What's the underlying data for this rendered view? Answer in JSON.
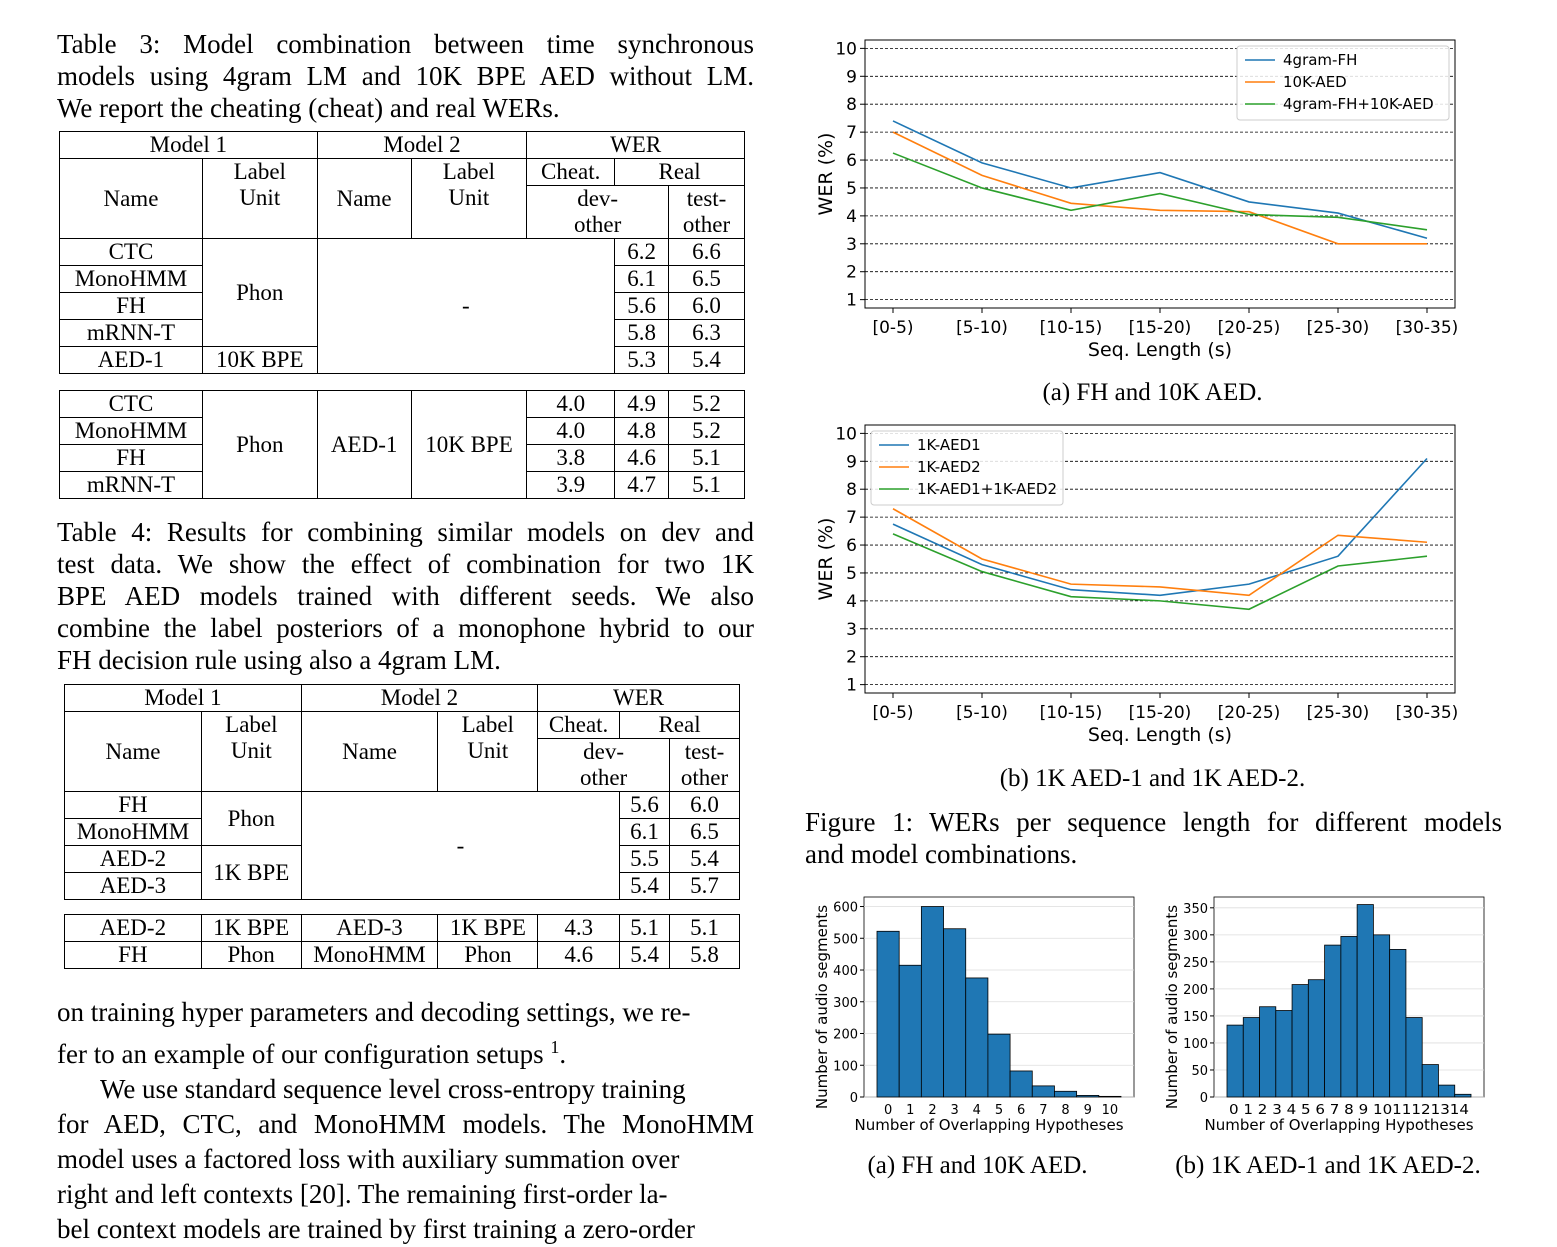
{
  "table3": {
    "caption_lines": [
      "Table 3:  Model combination between time synchronous",
      "models using 4gram LM and 10K BPE AED without LM.",
      "We report the cheating (cheat) and real WERs."
    ],
    "headers": {
      "model1": "Model 1",
      "model2": "Model 2",
      "wer": "WER",
      "name": "Name",
      "label": "Label",
      "unit": "Unit",
      "cheat": "Cheat.",
      "real": "Real",
      "dev": "dev-",
      "other": "other",
      "test": "test-",
      "dash": "-"
    },
    "single": [
      {
        "name": "CTC",
        "dev": "6.2",
        "test": "6.6"
      },
      {
        "name": "MonoHMM",
        "dev": "6.1",
        "test": "6.5"
      },
      {
        "name": "FH",
        "dev": "5.6",
        "test": "6.0"
      },
      {
        "name": "mRNN-T",
        "dev": "5.8",
        "test": "6.3"
      },
      {
        "name": "AED-1",
        "dev": "5.3",
        "test": "5.4"
      }
    ],
    "single_units": {
      "phon": "Phon",
      "bpe": "10K BPE"
    },
    "combo": {
      "unit1": "Phon",
      "model2": "AED-1",
      "unit2": "10K BPE",
      "rows": [
        {
          "name": "CTC",
          "cheat": "4.0",
          "dev": "4.9",
          "test": "5.2"
        },
        {
          "name": "MonoHMM",
          "cheat": "4.0",
          "dev": "4.8",
          "test": "5.2"
        },
        {
          "name": "FH",
          "cheat": "3.8",
          "dev": "4.6",
          "test": "5.1"
        },
        {
          "name": "mRNN-T",
          "cheat": "3.9",
          "dev": "4.7",
          "test": "5.1"
        }
      ]
    }
  },
  "table4": {
    "caption_lines": [
      "Table 4: Results for combining similar models on dev and",
      "test data.  We show the effect of combination for two 1K",
      "BPE AED models trained with different seeds. We also",
      "combine the label posteriors of a monophone hybrid to our",
      "FH decision rule using also a 4gram LM."
    ],
    "single": [
      {
        "name": "FH",
        "dev": "5.6",
        "test": "6.0"
      },
      {
        "name": "MonoHMM",
        "dev": "6.1",
        "test": "6.5"
      },
      {
        "name": "AED-2",
        "dev": "5.5",
        "test": "5.4"
      },
      {
        "name": "AED-3",
        "dev": "5.4",
        "test": "5.7"
      }
    ],
    "single_units": {
      "phon": "Phon",
      "bpe": "1K BPE"
    },
    "combo": [
      {
        "m1": "AED-2",
        "u1": "1K BPE",
        "m2": "AED-3",
        "u2": "1K BPE",
        "cheat": "4.3",
        "dev": "5.1",
        "test": "5.1"
      },
      {
        "m1": "FH",
        "u1": "Phon",
        "m2": "MonoHMM",
        "u2": "Phon",
        "cheat": "4.6",
        "dev": "5.4",
        "test": "5.8"
      }
    ]
  },
  "body": {
    "lines": [
      "on training hyper parameters and decoding settings, we re-",
      "fer to an example of our configuration setups",
      "We use standard sequence level cross-entropy training",
      "for AED, CTC, and MonoHMM models. The MonoHMM",
      "model uses a factored loss with auxiliary summation over",
      "right and left contexts [20]. The remaining first-order la-",
      "bel context models are trained by first training a zero-order"
    ],
    "footnote_mark": "1",
    "period": "."
  },
  "figure1": {
    "caption_lines": [
      "Figure 1: WERs per sequence length for different models",
      "and model combinations."
    ],
    "subcaption_a": "(a) FH and 10K AED.",
    "subcaption_b": "(b) 1K AED-1 and 1K AED-2."
  },
  "figure2": {
    "subcaption_a": "(a) FH and 10K AED.",
    "subcaption_b": "(b) 1K AED-1 and 1K AED-2."
  },
  "chart_data": [
    {
      "type": "line",
      "categories": [
        "[0-5)",
        "[5-10)",
        "[10-15)",
        "[15-20)",
        "[20-25)",
        "[25-30)",
        "[30-35)"
      ],
      "xlabel": "Seq. Length (s)",
      "ylabel": "WER (%)",
      "ylim": [
        0.7,
        10.3
      ],
      "yticks": [
        1,
        2,
        3,
        4,
        5,
        6,
        7,
        8,
        9,
        10
      ],
      "grid": true,
      "legend": "top-right",
      "series": [
        {
          "name": "4gram-FH",
          "color": "#1f77b4",
          "values": [
            7.4,
            5.9,
            5.0,
            5.55,
            4.5,
            4.1,
            3.2
          ]
        },
        {
          "name": "10K-AED",
          "color": "#ff7f0e",
          "values": [
            7.0,
            5.45,
            4.45,
            4.2,
            4.15,
            3.0,
            3.0
          ]
        },
        {
          "name": "4gram-FH+10K-AED",
          "color": "#2ca02c",
          "values": [
            6.25,
            5.0,
            4.2,
            4.8,
            4.05,
            3.95,
            3.5
          ]
        }
      ]
    },
    {
      "type": "line",
      "categories": [
        "[0-5)",
        "[5-10)",
        "[10-15)",
        "[15-20)",
        "[20-25)",
        "[25-30)",
        "[30-35)"
      ],
      "xlabel": "Seq. Length (s)",
      "ylabel": "WER (%)",
      "ylim": [
        0.7,
        10.3
      ],
      "yticks": [
        1,
        2,
        3,
        4,
        5,
        6,
        7,
        8,
        9,
        10
      ],
      "grid": true,
      "legend": "top-left",
      "series": [
        {
          "name": "1K-AED1",
          "color": "#1f77b4",
          "values": [
            6.75,
            5.3,
            4.4,
            4.2,
            4.6,
            5.6,
            9.1
          ]
        },
        {
          "name": "1K-AED2",
          "color": "#ff7f0e",
          "values": [
            7.3,
            5.5,
            4.6,
            4.5,
            4.2,
            6.35,
            6.1
          ]
        },
        {
          "name": "1K-AED1+1K-AED2",
          "color": "#2ca02c",
          "values": [
            6.4,
            5.05,
            4.15,
            4.0,
            3.7,
            5.25,
            5.6
          ]
        }
      ]
    },
    {
      "type": "bar",
      "categories": [
        "0",
        "1",
        "2",
        "3",
        "4",
        "5",
        "6",
        "7",
        "8",
        "9",
        "10"
      ],
      "values": [
        522,
        415,
        600,
        530,
        375,
        198,
        82,
        35,
        18,
        5,
        2
      ],
      "xlabel": "Number of Overlapping Hypotheses",
      "ylabel": "Number of audio segments",
      "ylim": [
        0,
        630
      ],
      "yticks": [
        0,
        100,
        200,
        300,
        400,
        500,
        600
      ],
      "color": "#1f77b4",
      "grid": true
    },
    {
      "type": "bar",
      "categories": [
        "0",
        "1",
        "2",
        "3",
        "4",
        "5",
        "6",
        "7",
        "8",
        "9",
        "10",
        "11",
        "12",
        "13",
        "14"
      ],
      "tick_text": "0 1 2 3 4 5 6 7 8 9 1011121314",
      "values": [
        133,
        147,
        167,
        160,
        208,
        217,
        281,
        297,
        356,
        300,
        273,
        147,
        60,
        22,
        5
      ],
      "xlabel": "Number of Overlapping Hypotheses",
      "ylabel": "Number of audio segments",
      "ylim": [
        0,
        370
      ],
      "yticks": [
        0,
        50,
        100,
        150,
        200,
        250,
        300,
        350
      ],
      "color": "#1f77b4",
      "grid": true
    }
  ]
}
